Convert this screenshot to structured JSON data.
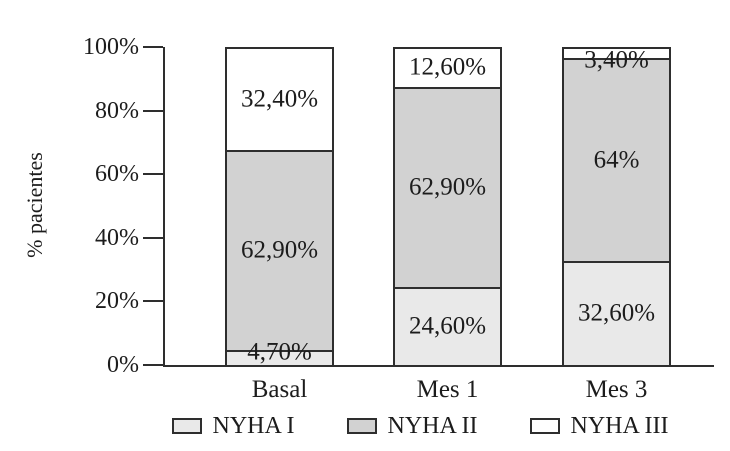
{
  "chart_data": {
    "type": "bar",
    "stacked": true,
    "title": "",
    "xlabel": "",
    "ylabel": "% pacientes",
    "ylim": [
      0,
      100
    ],
    "yticks": [
      0,
      20,
      40,
      60,
      80,
      100
    ],
    "ytick_labels": [
      "0%",
      "20%",
      "40%",
      "60%",
      "80%",
      "100%"
    ],
    "grid": false,
    "legend_position": "bottom",
    "categories": [
      "Basal",
      "Mes 1",
      "Mes 3"
    ],
    "series": [
      {
        "name": "NYHA I",
        "color": "#e9e9e9",
        "values": [
          4.7,
          24.6,
          32.6
        ],
        "labels": [
          "4,70%",
          "24,60%",
          "32,60%"
        ]
      },
      {
        "name": "NYHA II",
        "color": "#d2d2d2",
        "values": [
          62.9,
          62.9,
          64
        ],
        "labels": [
          "62,90%",
          "62,90%",
          "64%"
        ]
      },
      {
        "name": "NYHA III",
        "color": "#ffffff",
        "values": [
          32.4,
          12.6,
          3.4
        ],
        "labels": [
          "32,40%",
          "12,60%",
          "3,40%"
        ]
      }
    ],
    "colors": {
      "axis": "#2e2e2e",
      "text": "#1c1c1c",
      "background": "#ffffff"
    }
  }
}
